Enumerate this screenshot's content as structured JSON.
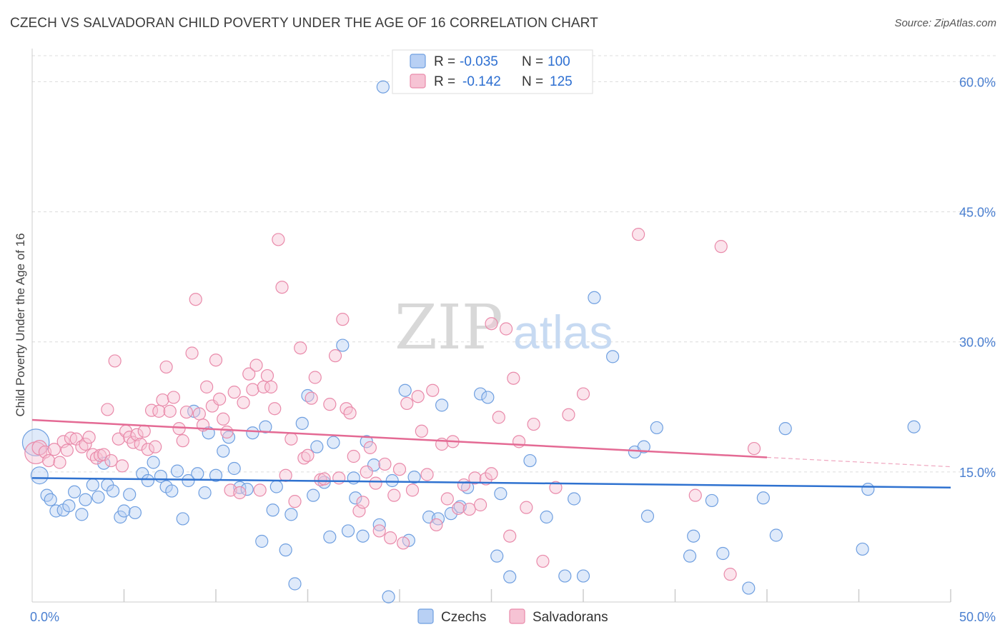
{
  "title": "CZECH VS SALVADORAN CHILD POVERTY UNDER THE AGE OF 16 CORRELATION CHART",
  "source": "Source: ZipAtlas.com",
  "watermark": {
    "zip": "ZIP",
    "atlas": "atlas"
  },
  "legend": {
    "rows": [
      {
        "r_label": "R =",
        "r_value": "-0.035",
        "n_label": "N =",
        "n_value": "100",
        "color": "#6f9fe0",
        "fill": "#b8d0f4"
      },
      {
        "r_label": "R =",
        "r_value": "-0.142",
        "n_label": "N =",
        "n_value": "125",
        "color": "#e98aaa",
        "fill": "#f6c3d4"
      }
    ]
  },
  "chart_data": {
    "type": "scatter",
    "title": "CZECH VS SALVADORAN CHILD POVERTY UNDER THE AGE OF 16 CORRELATION CHART",
    "xlabel": "",
    "ylabel": "Child Poverty Under the Age of 16",
    "xlim": [
      0,
      50
    ],
    "ylim": [
      0,
      63
    ],
    "x_tick_labels": [
      "0.0%",
      "50.0%"
    ],
    "y_ticks": [
      15,
      30,
      45,
      60
    ],
    "y_tick_labels": [
      "15.0%",
      "30.0%",
      "45.0%",
      "60.0%"
    ],
    "grid": true,
    "legend_position": "top-center",
    "series": [
      {
        "name": "Czechs",
        "color": "#6f9fe0",
        "fill": "#b8d0f4",
        "trend": {
          "x": [
            0,
            50
          ],
          "y": [
            14.3,
            13.2
          ],
          "solid_until": 50
        },
        "points": [
          [
            0.2,
            18.4,
            2.2
          ],
          [
            0.4,
            14.6,
            1.4
          ],
          [
            0.8,
            12.3,
            1
          ],
          [
            1.0,
            11.8,
            1
          ],
          [
            1.3,
            10.5,
            1
          ],
          [
            1.7,
            10.6,
            1
          ],
          [
            2.0,
            11.1,
            1
          ],
          [
            2.3,
            12.7,
            1
          ],
          [
            2.7,
            10.1,
            1
          ],
          [
            2.9,
            11.8,
            1
          ],
          [
            3.3,
            13.5,
            1
          ],
          [
            3.6,
            12.1,
            1
          ],
          [
            3.9,
            16.0,
            1
          ],
          [
            4.1,
            13.5,
            1
          ],
          [
            4.4,
            12.8,
            1
          ],
          [
            4.8,
            9.8,
            1
          ],
          [
            5.0,
            10.5,
            1
          ],
          [
            5.3,
            12.4,
            1
          ],
          [
            5.6,
            10.3,
            1
          ],
          [
            6.0,
            14.8,
            1
          ],
          [
            6.3,
            14.0,
            1
          ],
          [
            6.6,
            16.1,
            1
          ],
          [
            7.0,
            14.5,
            1
          ],
          [
            7.3,
            13.3,
            1
          ],
          [
            7.6,
            12.8,
            1
          ],
          [
            7.9,
            15.1,
            1
          ],
          [
            8.2,
            9.6,
            1
          ],
          [
            8.5,
            14.0,
            1
          ],
          [
            8.8,
            22.0,
            1
          ],
          [
            9.0,
            14.8,
            1
          ],
          [
            9.4,
            12.6,
            1
          ],
          [
            9.6,
            19.5,
            1
          ],
          [
            10.0,
            14.6,
            1
          ],
          [
            10.4,
            17.4,
            1
          ],
          [
            10.7,
            19.0,
            1
          ],
          [
            11.0,
            15.4,
            1
          ],
          [
            11.3,
            13.2,
            1
          ],
          [
            11.7,
            13.0,
            1
          ],
          [
            12.0,
            19.5,
            1
          ],
          [
            12.5,
            7.0,
            1
          ],
          [
            12.7,
            20.2,
            1
          ],
          [
            13.1,
            10.6,
            1
          ],
          [
            13.3,
            13.3,
            1
          ],
          [
            13.8,
            6.0,
            1
          ],
          [
            14.1,
            10.1,
            1
          ],
          [
            14.3,
            2.1,
            1
          ],
          [
            14.7,
            20.6,
            1
          ],
          [
            15.0,
            23.8,
            1
          ],
          [
            15.3,
            12.3,
            1
          ],
          [
            15.5,
            17.9,
            1
          ],
          [
            15.9,
            13.8,
            1
          ],
          [
            16.2,
            7.5,
            1
          ],
          [
            16.4,
            18.4,
            1
          ],
          [
            16.9,
            29.6,
            1
          ],
          [
            17.2,
            8.2,
            1
          ],
          [
            17.5,
            14.3,
            1
          ],
          [
            17.6,
            12.0,
            1
          ],
          [
            18.0,
            7.6,
            1
          ],
          [
            18.2,
            18.5,
            1
          ],
          [
            18.6,
            15.8,
            1
          ],
          [
            18.9,
            8.9,
            1
          ],
          [
            19.1,
            59.4,
            1
          ],
          [
            19.4,
            0.6,
            1
          ],
          [
            19.6,
            14.0,
            1
          ],
          [
            20.3,
            24.4,
            1
          ],
          [
            20.5,
            7.1,
            1
          ],
          [
            20.8,
            14.4,
            1
          ],
          [
            21.6,
            9.8,
            1
          ],
          [
            22.1,
            9.6,
            1
          ],
          [
            22.3,
            22.7,
            1
          ],
          [
            22.8,
            10.2,
            1
          ],
          [
            23.3,
            11.0,
            1
          ],
          [
            23.7,
            13.2,
            1
          ],
          [
            24.4,
            24.0,
            1
          ],
          [
            24.8,
            23.6,
            1
          ],
          [
            25.3,
            5.3,
            1
          ],
          [
            25.5,
            12.5,
            1
          ],
          [
            26.0,
            2.9,
            1
          ],
          [
            27.1,
            16.3,
            1
          ],
          [
            28.0,
            9.8,
            1
          ],
          [
            29.0,
            3.0,
            1
          ],
          [
            29.5,
            11.9,
            1
          ],
          [
            30.0,
            3.0,
            1
          ],
          [
            30.6,
            35.1,
            1
          ],
          [
            31.6,
            28.3,
            1
          ],
          [
            32.8,
            17.3,
            1
          ],
          [
            33.3,
            17.9,
            1
          ],
          [
            33.5,
            9.9,
            1
          ],
          [
            34.0,
            20.1,
            1
          ],
          [
            35.8,
            5.3,
            1
          ],
          [
            36.0,
            7.6,
            1
          ],
          [
            37.0,
            11.7,
            1
          ],
          [
            37.6,
            5.6,
            1
          ],
          [
            39.0,
            1.6,
            1
          ],
          [
            39.8,
            12.0,
            1
          ],
          [
            40.5,
            7.7,
            1
          ],
          [
            41.0,
            20.0,
            1
          ],
          [
            45.2,
            6.1,
            1
          ],
          [
            45.5,
            13.0,
            1
          ],
          [
            48.0,
            20.2,
            1
          ]
        ]
      },
      {
        "name": "Salvadorans",
        "color": "#e98aaa",
        "fill": "#f6c3d4",
        "trend": {
          "x": [
            0,
            50
          ],
          "y": [
            21.0,
            15.6
          ],
          "solid_until": 40
        },
        "points": [
          [
            0.2,
            17.2,
            1.8
          ],
          [
            0.4,
            17.8,
            1.2
          ],
          [
            0.7,
            17.3,
            1
          ],
          [
            0.9,
            16.3,
            1
          ],
          [
            1.2,
            17.6,
            1
          ],
          [
            1.5,
            16.1,
            1
          ],
          [
            1.7,
            18.5,
            1
          ],
          [
            1.9,
            17.5,
            1
          ],
          [
            2.1,
            18.9,
            1
          ],
          [
            2.4,
            18.8,
            1
          ],
          [
            2.7,
            17.9,
            1
          ],
          [
            2.9,
            18.2,
            1
          ],
          [
            3.1,
            19.0,
            1
          ],
          [
            3.3,
            17.0,
            1
          ],
          [
            3.5,
            16.6,
            1
          ],
          [
            3.7,
            16.9,
            1
          ],
          [
            3.9,
            17.0,
            1
          ],
          [
            4.1,
            22.2,
            1
          ],
          [
            4.3,
            16.3,
            1
          ],
          [
            4.5,
            27.8,
            1
          ],
          [
            4.7,
            18.8,
            1
          ],
          [
            4.9,
            15.7,
            1
          ],
          [
            5.1,
            19.7,
            1
          ],
          [
            5.3,
            19.0,
            1
          ],
          [
            5.5,
            18.4,
            1
          ],
          [
            5.7,
            19.3,
            1
          ],
          [
            5.9,
            18.2,
            1
          ],
          [
            6.1,
            19.7,
            1
          ],
          [
            6.3,
            17.6,
            1
          ],
          [
            6.5,
            22.1,
            1
          ],
          [
            6.7,
            17.9,
            1
          ],
          [
            6.9,
            22.0,
            1
          ],
          [
            7.1,
            23.3,
            1
          ],
          [
            7.3,
            27.1,
            1
          ],
          [
            7.5,
            22.0,
            1
          ],
          [
            7.7,
            23.6,
            1
          ],
          [
            8.0,
            20.0,
            1
          ],
          [
            8.2,
            18.6,
            1
          ],
          [
            8.4,
            21.9,
            1
          ],
          [
            8.7,
            28.7,
            1
          ],
          [
            8.9,
            34.9,
            1
          ],
          [
            9.1,
            21.7,
            1
          ],
          [
            9.3,
            20.4,
            1
          ],
          [
            9.5,
            24.8,
            1
          ],
          [
            9.8,
            22.6,
            1
          ],
          [
            10.0,
            27.9,
            1
          ],
          [
            10.2,
            23.4,
            1
          ],
          [
            10.4,
            21.1,
            1
          ],
          [
            10.6,
            19.6,
            1
          ],
          [
            10.8,
            12.9,
            1
          ],
          [
            11.0,
            24.2,
            1
          ],
          [
            11.3,
            12.6,
            1
          ],
          [
            11.5,
            23.0,
            1
          ],
          [
            11.8,
            26.3,
            1
          ],
          [
            12.0,
            24.5,
            1
          ],
          [
            12.2,
            27.3,
            1
          ],
          [
            12.4,
            12.9,
            1
          ],
          [
            12.6,
            24.8,
            1
          ],
          [
            12.8,
            26.1,
            1
          ],
          [
            13.0,
            24.8,
            1
          ],
          [
            13.2,
            22.3,
            1
          ],
          [
            13.4,
            41.8,
            1
          ],
          [
            13.6,
            36.3,
            1
          ],
          [
            13.8,
            14.6,
            1
          ],
          [
            14.1,
            18.8,
            1
          ],
          [
            14.3,
            11.6,
            1
          ],
          [
            14.6,
            29.3,
            1
          ],
          [
            14.8,
            16.6,
            1
          ],
          [
            15.0,
            16.9,
            1
          ],
          [
            15.2,
            23.5,
            1
          ],
          [
            15.4,
            25.9,
            1
          ],
          [
            15.7,
            14.1,
            1
          ],
          [
            15.9,
            14.2,
            1
          ],
          [
            16.2,
            22.8,
            1
          ],
          [
            16.5,
            28.4,
            1
          ],
          [
            16.7,
            14.3,
            1
          ],
          [
            16.9,
            32.6,
            1
          ],
          [
            17.1,
            22.3,
            1
          ],
          [
            17.3,
            21.8,
            1
          ],
          [
            17.5,
            16.8,
            1
          ],
          [
            17.8,
            10.5,
            1
          ],
          [
            18.0,
            11.5,
            1
          ],
          [
            18.2,
            15.0,
            1
          ],
          [
            18.4,
            17.8,
            1
          ],
          [
            18.7,
            13.7,
            1
          ],
          [
            18.9,
            8.2,
            1
          ],
          [
            19.2,
            15.9,
            1
          ],
          [
            19.5,
            7.4,
            1
          ],
          [
            19.7,
            12.3,
            1
          ],
          [
            20.0,
            15.3,
            1
          ],
          [
            20.2,
            6.8,
            1
          ],
          [
            20.4,
            22.9,
            1
          ],
          [
            20.7,
            12.9,
            1
          ],
          [
            21.0,
            23.7,
            1
          ],
          [
            21.2,
            19.7,
            1
          ],
          [
            21.5,
            14.7,
            1
          ],
          [
            21.8,
            24.4,
            1
          ],
          [
            22.0,
            8.9,
            1
          ],
          [
            22.3,
            18.2,
            1
          ],
          [
            22.6,
            11.9,
            1
          ],
          [
            22.9,
            18.5,
            1
          ],
          [
            23.2,
            10.8,
            1
          ],
          [
            23.5,
            13.5,
            1
          ],
          [
            23.8,
            10.7,
            1
          ],
          [
            24.1,
            14.3,
            1
          ],
          [
            24.4,
            11.2,
            1
          ],
          [
            24.7,
            14.2,
            1
          ],
          [
            25.0,
            32.1,
            1
          ],
          [
            25.4,
            21.3,
            1
          ],
          [
            25.8,
            31.5,
            1
          ],
          [
            26.2,
            25.8,
            1
          ],
          [
            26.5,
            18.5,
            1
          ],
          [
            26.9,
            10.9,
            1
          ],
          [
            27.3,
            20.5,
            1
          ],
          [
            27.8,
            4.7,
            1
          ],
          [
            28.5,
            13.2,
            1
          ],
          [
            29.2,
            21.6,
            1
          ],
          [
            30.0,
            24.0,
            1
          ],
          [
            33.0,
            42.4,
            1
          ],
          [
            36.1,
            12.3,
            1
          ],
          [
            37.5,
            41.0,
            1
          ],
          [
            38.0,
            3.2,
            1
          ],
          [
            39.3,
            17.7,
            1
          ],
          [
            25.0,
            14.8,
            1
          ],
          [
            26.0,
            7.6,
            1
          ]
        ]
      }
    ]
  },
  "bottom_legend": [
    {
      "label": "Czechs",
      "color": "#6f9fe0",
      "fill": "#b8d0f4"
    },
    {
      "label": "Salvadorans",
      "color": "#e98aaa",
      "fill": "#f6c3d4"
    }
  ]
}
